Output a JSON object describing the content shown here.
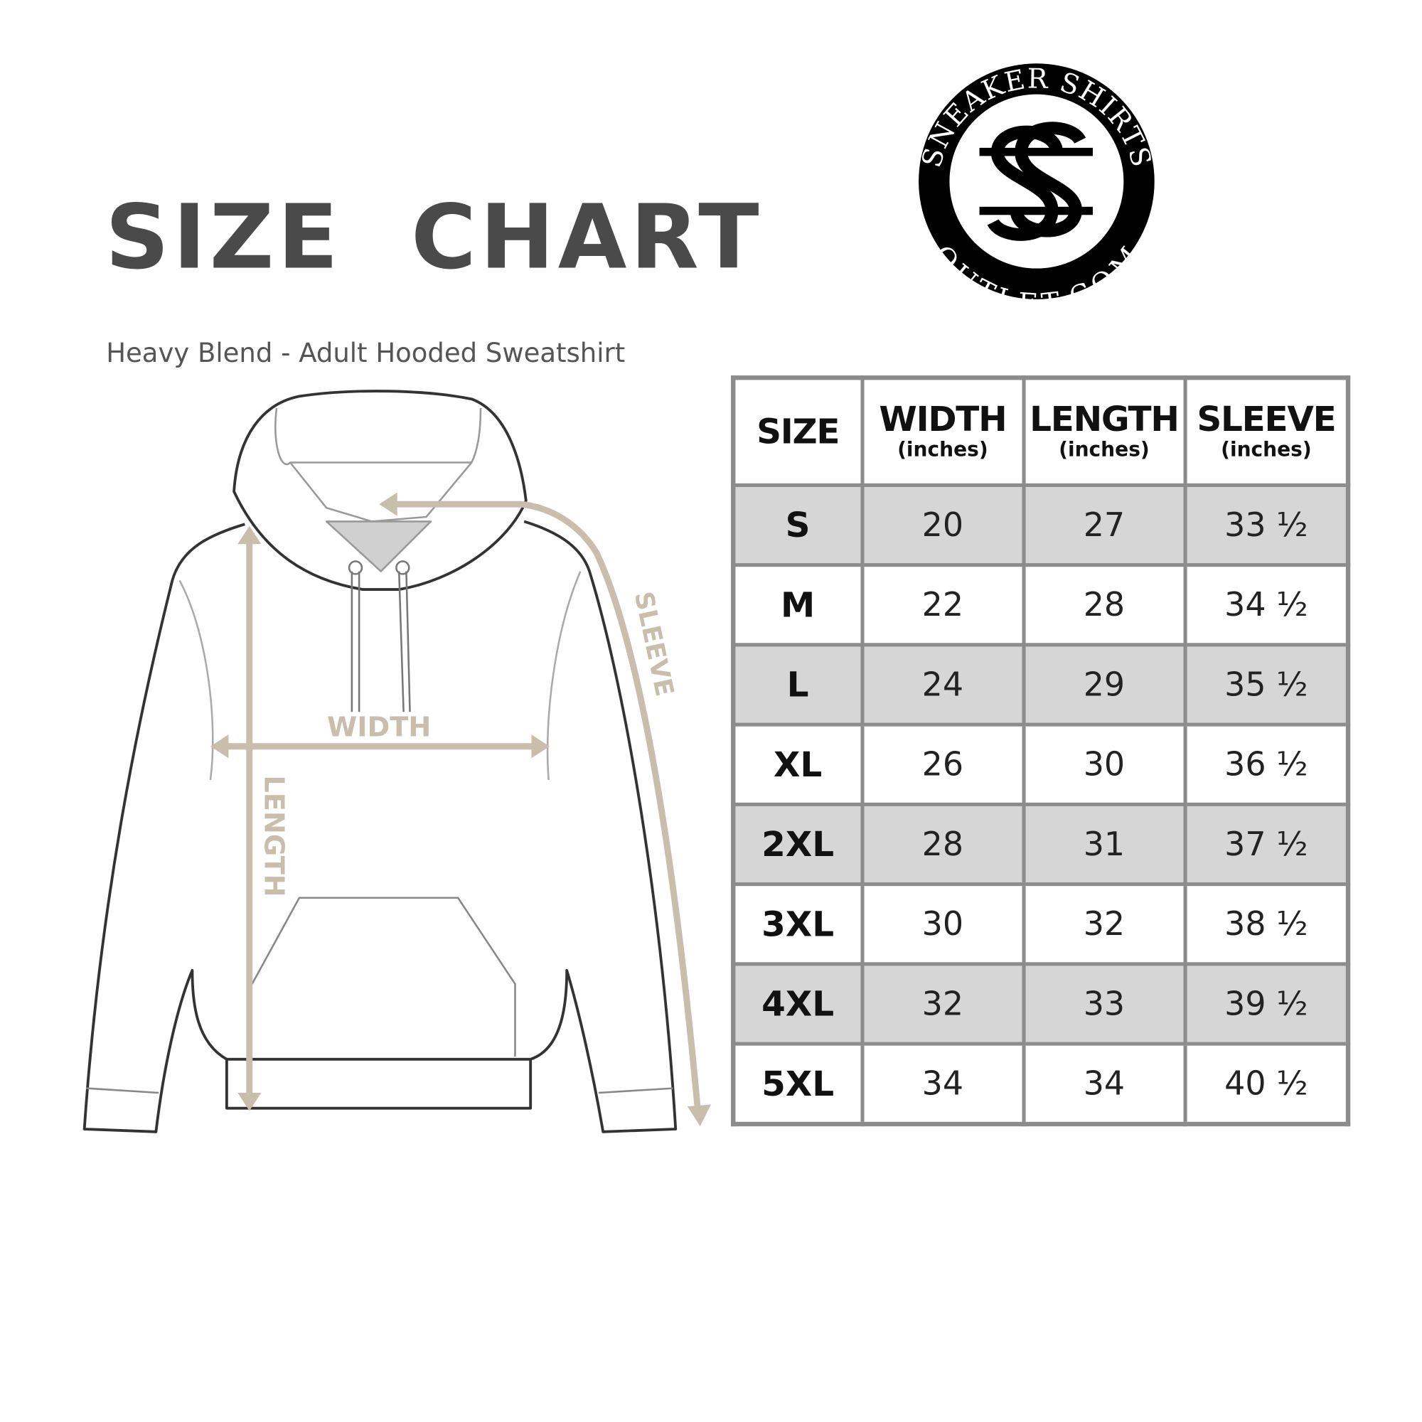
{
  "title": "SIZE  CHART",
  "subtitle": "Heavy Blend - Adult Hooded Sweatshirt",
  "logo": {
    "top_text": "SNEAKER SHIRTS",
    "bottom_text": "OUTLET.COM",
    "monogram": "SS"
  },
  "diagram": {
    "width_label": "WIDTH",
    "length_label": "LENGTH",
    "sleeve_label": "SLEEVE",
    "arrow_color": "#c9beac"
  },
  "table": {
    "headers": [
      {
        "label": "SIZE",
        "unit": ""
      },
      {
        "label": "WIDTH",
        "unit": "(inches)"
      },
      {
        "label": "LENGTH",
        "unit": "(inches)"
      },
      {
        "label": "SLEEVE",
        "unit": "(inches)"
      }
    ],
    "rows": [
      [
        "S",
        "20",
        "27",
        "33 ½"
      ],
      [
        "M",
        "22",
        "28",
        "34 ½"
      ],
      [
        "L",
        "24",
        "29",
        "35 ½"
      ],
      [
        "XL",
        "26",
        "30",
        "36 ½"
      ],
      [
        "2XL",
        "28",
        "31",
        "37 ½"
      ],
      [
        "3XL",
        "30",
        "32",
        "38 ½"
      ],
      [
        "4XL",
        "32",
        "33",
        "39 ½"
      ],
      [
        "5XL",
        "34",
        "34",
        "40 ½"
      ]
    ]
  }
}
